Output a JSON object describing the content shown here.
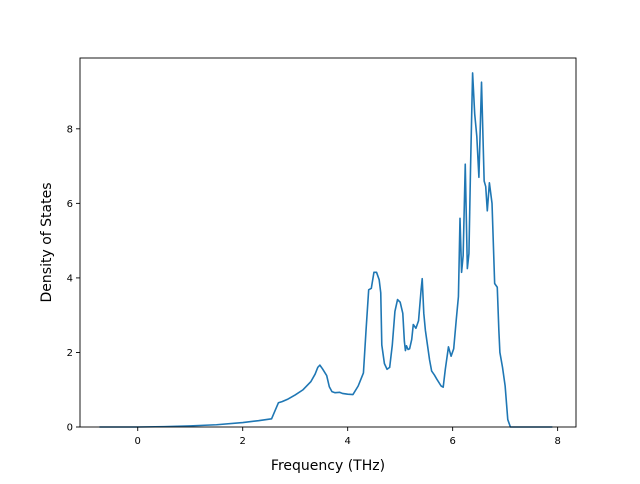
{
  "chart_data": {
    "type": "line",
    "title": "",
    "xlabel": "Frequency (THz)",
    "ylabel": "Density of States",
    "xlim": [
      -1.1,
      8.35
    ],
    "ylim": [
      0,
      9.9
    ],
    "xticks": [
      0,
      2,
      4,
      6,
      8
    ],
    "yticks": [
      0,
      2,
      4,
      6,
      8
    ],
    "grid": false,
    "legend": "none",
    "series": [
      {
        "color": "#1f77b4",
        "x": [
          -0.73,
          -0.5,
          0.0,
          0.5,
          1.0,
          1.5,
          2.0,
          2.3,
          2.55,
          2.62,
          2.68,
          2.75,
          2.85,
          3.0,
          3.15,
          3.3,
          3.38,
          3.43,
          3.47,
          3.52,
          3.6,
          3.65,
          3.7,
          3.76,
          3.85,
          3.9,
          4.0,
          4.1,
          4.2,
          4.3,
          4.35,
          4.4,
          4.45,
          4.5,
          4.55,
          4.6,
          4.63,
          4.65,
          4.7,
          4.75,
          4.8,
          4.85,
          4.9,
          4.95,
          5.0,
          5.05,
          5.08,
          5.1,
          5.12,
          5.15,
          5.18,
          5.22,
          5.25,
          5.3,
          5.35,
          5.4,
          5.42,
          5.45,
          5.48,
          5.52,
          5.56,
          5.6,
          5.65,
          5.7,
          5.78,
          5.82,
          5.86,
          5.92,
          5.97,
          6.02,
          6.07,
          6.11,
          6.14,
          6.17,
          6.2,
          6.24,
          6.28,
          6.31,
          6.34,
          6.38,
          6.42,
          6.46,
          6.5,
          6.55,
          6.6,
          6.63,
          6.66,
          6.7,
          6.75,
          6.8,
          6.85,
          6.88,
          6.9,
          6.95,
          7.0,
          7.05,
          7.1,
          7.15,
          7.2,
          7.3,
          7.5,
          7.9
        ],
        "y": [
          0.0,
          0.0,
          0.0,
          0.01,
          0.03,
          0.06,
          0.12,
          0.17,
          0.22,
          0.45,
          0.65,
          0.68,
          0.74,
          0.86,
          1.0,
          1.22,
          1.42,
          1.6,
          1.66,
          1.56,
          1.38,
          1.08,
          0.95,
          0.92,
          0.93,
          0.9,
          0.88,
          0.87,
          1.1,
          1.45,
          2.6,
          3.68,
          3.72,
          4.15,
          4.15,
          3.95,
          3.6,
          2.2,
          1.7,
          1.55,
          1.6,
          2.2,
          3.1,
          3.42,
          3.35,
          3.05,
          2.3,
          2.05,
          2.18,
          2.08,
          2.1,
          2.35,
          2.75,
          2.65,
          2.85,
          3.7,
          3.98,
          3.05,
          2.6,
          2.2,
          1.8,
          1.5,
          1.4,
          1.28,
          1.1,
          1.07,
          1.55,
          2.15,
          1.9,
          2.1,
          2.9,
          3.5,
          5.6,
          4.15,
          4.6,
          7.05,
          4.25,
          4.65,
          6.9,
          9.5,
          8.4,
          7.8,
          6.7,
          9.25,
          6.6,
          6.45,
          5.8,
          6.55,
          6.0,
          3.85,
          3.75,
          2.6,
          2.0,
          1.6,
          1.1,
          0.2,
          0.0,
          0.0,
          0.0,
          0.0,
          0.0,
          0.0
        ]
      }
    ]
  }
}
